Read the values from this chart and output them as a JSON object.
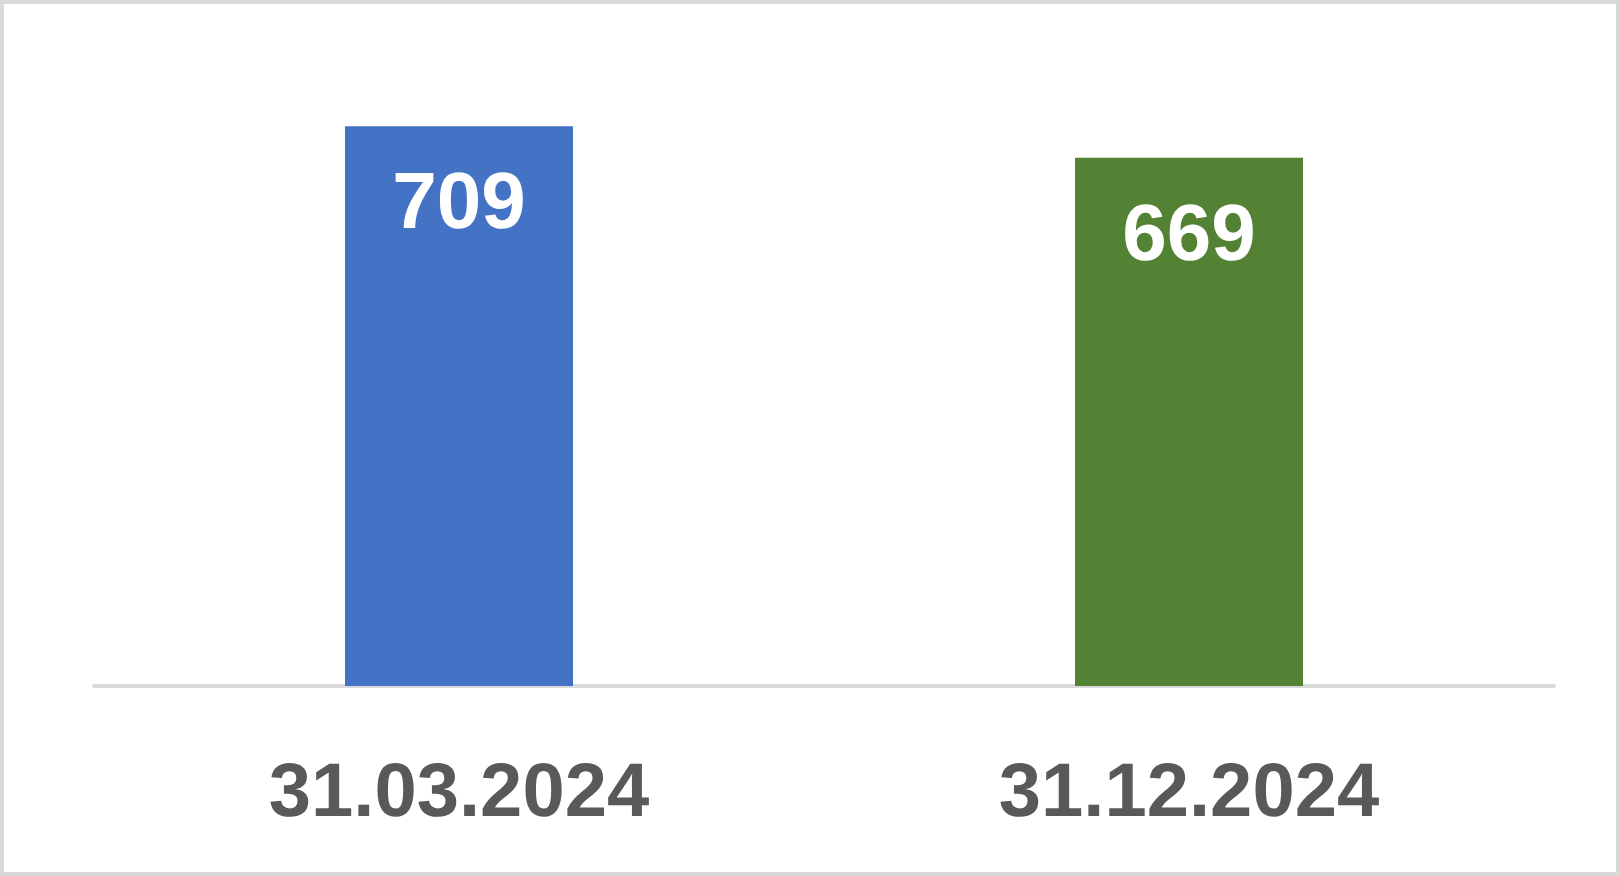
{
  "chart_data": {
    "type": "bar",
    "categories": [
      "31.03.2024",
      "31.12.2024"
    ],
    "values": [
      709,
      669
    ],
    "colors": [
      "#4472c4",
      "#548235"
    ],
    "data_labels": true
  }
}
